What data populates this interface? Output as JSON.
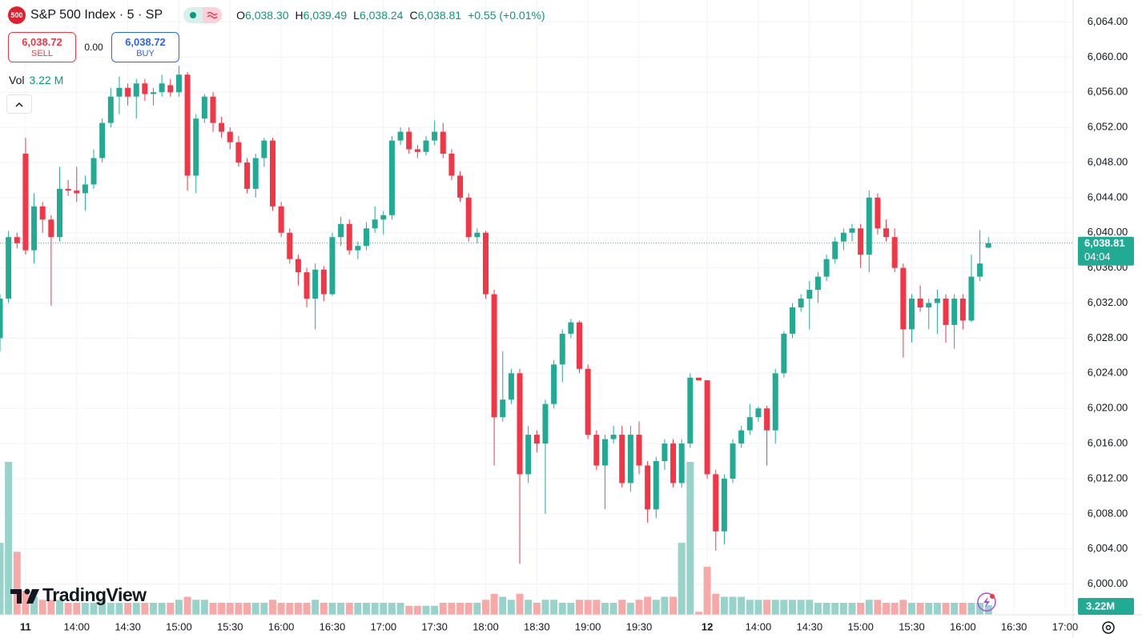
{
  "header": {
    "symbol_badge": "500",
    "symbol": "S&P 500 Index · 5 · SP",
    "open_label": "O",
    "open": "6,038.30",
    "high_label": "H",
    "high": "6,039.49",
    "low_label": "L",
    "low": "6,038.24",
    "close_label": "C",
    "close": "6,038.81",
    "change": "+0.55 (+0.01%)",
    "sell_price": "6,038.72",
    "sell_label": "SELL",
    "spread": "0.00",
    "buy_price": "6,038.72",
    "buy_label": "BUY",
    "volume_label": "Vol",
    "volume": "3.22 M"
  },
  "logo": "TradingView",
  "chart_data": {
    "type": "candlestick",
    "categories": [
      null,
      null,
      null,
      "11",
      null,
      null,
      null,
      null,
      null,
      "14:00",
      null,
      null,
      null,
      null,
      null,
      "14:30",
      null,
      null,
      null,
      null,
      null,
      "15:00",
      null,
      null,
      null,
      null,
      null,
      "15:30",
      null,
      null,
      null,
      null,
      null,
      "16:00",
      null,
      null,
      null,
      null,
      null,
      "16:30",
      null,
      null,
      null,
      null,
      null,
      "17:00",
      null,
      null,
      null,
      null,
      null,
      "17:30",
      null,
      null,
      null,
      null,
      null,
      "18:00",
      null,
      null,
      null,
      null,
      null,
      "18:30",
      null,
      null,
      null,
      null,
      null,
      "19:00",
      null,
      null,
      null,
      null,
      null,
      "19:30",
      null,
      null,
      null,
      null,
      null,
      null,
      null,
      "12",
      null,
      null,
      null,
      null,
      null,
      "14:00",
      null,
      null,
      null,
      null,
      null,
      "14:30",
      null,
      null,
      null,
      null,
      null,
      "15:00",
      null,
      null,
      null,
      null,
      null,
      "15:30",
      null,
      null,
      null,
      null,
      null,
      "16:00",
      null,
      null,
      null,
      null,
      null,
      "16:30",
      null,
      null,
      null,
      null,
      null,
      "17:00"
    ],
    "open": [
      6028,
      6032.5,
      6039.5,
      6049,
      6038,
      6043,
      6041.5,
      6039.5,
      6045,
      6044.8,
      6044.5,
      6045.5,
      6048.5,
      6052.5,
      6055.5,
      6056.5,
      6055.5,
      6057,
      6055.8,
      6056,
      6056.8,
      6056,
      6058,
      6046.5,
      6053,
      6055.5,
      6052.5,
      6051.5,
      6050.3,
      6048,
      6045,
      6048.5,
      6050.5,
      6043,
      6040,
      6037,
      6035.5,
      6032.5,
      6035.8,
      6033,
      6039.5,
      6041,
      6038,
      6038.5,
      6040.5,
      6041.5,
      6042,
      6050.5,
      6051.5,
      6049.5,
      6049.2,
      6050.5,
      6051.5,
      6049,
      6046.5,
      6044,
      6039.5,
      6040,
      6033,
      6019,
      6021,
      6024,
      6012.5,
      6017,
      6016,
      6020.5,
      6025,
      6028.5,
      6029.8,
      6024.5,
      6017,
      6013.5,
      6016.5,
      6017,
      6011.5,
      6017,
      6013.5,
      6008.5,
      6014,
      6016,
      6011.5,
      6016,
      6023.5,
      6023.2,
      6012.5,
      6006,
      6012,
      6016,
      6017.5,
      6019,
      6020,
      6017.5,
      6024,
      6028.5,
      6031.5,
      6032.5,
      6033.5,
      6035,
      6037,
      6039,
      6040,
      6040.5,
      6037.5,
      6044,
      6040.5,
      6039.5,
      6036,
      6029,
      6032.5,
      6031.5,
      6032,
      6032.5,
      6029.5,
      6032.5,
      6030,
      6035,
      6038.3,
      null,
      null,
      null,
      null,
      null,
      null,
      null,
      null,
      null
    ],
    "high": [
      6033,
      6040.2,
      6040,
      6050.8,
      6044.5,
      6043.5,
      6042,
      6047.5,
      6046,
      6047.5,
      6046.5,
      6049.5,
      6053,
      6056.5,
      6057.8,
      6057,
      6057.5,
      6057.5,
      6056.5,
      6058,
      6057.5,
      6059,
      6058.3,
      6053.5,
      6055.8,
      6056,
      6053.2,
      6052,
      6051,
      6048.5,
      6049,
      6050.8,
      6050.8,
      6043.5,
      6040.5,
      6037.5,
      6036,
      6036.5,
      6036.2,
      6040,
      6041.8,
      6041.5,
      6039,
      6041.2,
      6043,
      6042.5,
      6051,
      6052,
      6052,
      6050,
      6051,
      6052.8,
      6052.5,
      6049.5,
      6047,
      6044.5,
      6040.5,
      6040.2,
      6033.5,
      6026.5,
      6024.5,
      6024.5,
      6018,
      6017.5,
      6021,
      6025.5,
      6029,
      6030.2,
      6030,
      6025,
      6017.5,
      6017,
      6018,
      6018,
      6018,
      6018.5,
      6014,
      6014.5,
      6016.5,
      6016.5,
      6016.5,
      6024,
      6023.5,
      6023.2,
      6013,
      6012.5,
      6016.5,
      6018,
      6020.5,
      6020.2,
      6020.3,
      6024.5,
      6028.8,
      6032,
      6033,
      6034.5,
      6035.5,
      6037.5,
      6039.5,
      6040.5,
      6041,
      6041,
      6044.8,
      6044.5,
      6041.5,
      6040.5,
      6036.5,
      6033,
      6034,
      6032.5,
      6033.5,
      6033,
      6033,
      6033,
      6037.5,
      6040.3,
      6039.49,
      null,
      null,
      null,
      null,
      null,
      null,
      null,
      null,
      null
    ],
    "low": [
      6026.5,
      6032,
      6038.2,
      6037.5,
      6036.5,
      6040,
      6031.7,
      6039,
      6044.2,
      6043.5,
      6042.5,
      6045,
      6048,
      6052,
      6053.5,
      6054.5,
      6053,
      6055,
      6054.5,
      6055.5,
      6055.5,
      6055.5,
      6044.8,
      6044.5,
      6052.5,
      6051.5,
      6050.8,
      6049.5,
      6047.5,
      6044.5,
      6044,
      6047.5,
      6042.5,
      6039.5,
      6036.5,
      6034,
      6031.5,
      6029,
      6032.2,
      6032.8,
      6038.5,
      6037.5,
      6037,
      6038,
      6040,
      6039.8,
      6041.5,
      6050,
      6049,
      6048.5,
      6048.8,
      6050,
      6048.5,
      6046,
      6043.5,
      6039,
      6038.8,
      6032.5,
      6013.5,
      6018.5,
      6020.5,
      6002.3,
      6011.5,
      6015,
      6008,
      6020,
      6023,
      6028,
      6024,
      6016.5,
      6013,
      6008.5,
      6016,
      6011,
      6010.5,
      6012.5,
      6007,
      6007.5,
      6013,
      6011,
      6011,
      6015.5,
      6023.2,
      6012,
      6003.8,
      6004.5,
      6011.5,
      6015.5,
      6017,
      6018.5,
      6013.5,
      6016,
      6023.5,
      6028,
      6031,
      6029,
      6032,
      6034.5,
      6036.5,
      6038,
      6039,
      6036,
      6035.5,
      6039.8,
      6039,
      6035.5,
      6025.8,
      6027.5,
      6031,
      6029,
      6028.5,
      6027.5,
      6026.8,
      6029,
      6029.8,
      6034.5,
      6038.24,
      null,
      null,
      null,
      null,
      null,
      null,
      null,
      null,
      null
    ],
    "close": [
      6032.5,
      6039.5,
      6038.8,
      6038,
      6043,
      6041.5,
      6039.5,
      6045,
      6044.8,
      6044.5,
      6045.5,
      6048.5,
      6052.5,
      6055.5,
      6056.5,
      6055.5,
      6057,
      6055.8,
      6056,
      6057,
      6056,
      6058,
      6046.5,
      6053,
      6055.5,
      6052.5,
      6051.5,
      6050.3,
      6048,
      6045,
      6048.5,
      6050.5,
      6043,
      6040,
      6037,
      6035.5,
      6032.5,
      6035.8,
      6033,
      6039.5,
      6041,
      6038,
      6038.5,
      6040.5,
      6041.5,
      6042,
      6050.5,
      6051.5,
      6049.5,
      6049.2,
      6050.5,
      6051.5,
      6049,
      6046.5,
      6044,
      6039.5,
      6040,
      6033,
      6019,
      6021,
      6024,
      6012.5,
      6017,
      6016,
      6020.5,
      6025,
      6028.5,
      6029.8,
      6024.5,
      6017,
      6013.5,
      6016.5,
      6017,
      6011.5,
      6017,
      6013.5,
      6008.5,
      6014,
      6016,
      6011.5,
      6016,
      6023.5,
      6023.2,
      6012.5,
      6006,
      6012,
      6016,
      6017.5,
      6019,
      6020,
      6017.5,
      6024,
      6028.5,
      6031.5,
      6032.5,
      6033.5,
      6035,
      6037,
      6039,
      6040,
      6040.5,
      6037.5,
      6044,
      6040.5,
      6039.5,
      6036,
      6029,
      6032.5,
      6031.5,
      6032,
      6032.5,
      6029.5,
      6032.5,
      6030,
      6035,
      6036.5,
      6038.81,
      null,
      null,
      null,
      null,
      null,
      null,
      null,
      null,
      null
    ],
    "volume": [
      24,
      51,
      21,
      8,
      6,
      5,
      5,
      5,
      4,
      4,
      4,
      4,
      5,
      4,
      4,
      4,
      4,
      4,
      4,
      4,
      4,
      5,
      6,
      5,
      5,
      4,
      4,
      4,
      4,
      4,
      4,
      4,
      5,
      4,
      4,
      4,
      4,
      5,
      4,
      4,
      4,
      4,
      4,
      4,
      4,
      4,
      4,
      4,
      3,
      3,
      3,
      3,
      4,
      4,
      4,
      4,
      4,
      5,
      7,
      6,
      5,
      7,
      5,
      4,
      5,
      5,
      4,
      4,
      5,
      5,
      5,
      4,
      4,
      5,
      4,
      5,
      6,
      5,
      6,
      6,
      24,
      51,
      1,
      16,
      7,
      6,
      6,
      6,
      5,
      5,
      5,
      5,
      5,
      5,
      5,
      5,
      4,
      4,
      4,
      4,
      4,
      4,
      5,
      5,
      4,
      4,
      5,
      4,
      4,
      4,
      4,
      4,
      4,
      4,
      4,
      4,
      3.22,
      null,
      null,
      null,
      null,
      null,
      null,
      null,
      null,
      null
    ],
    "up_color": "#22ab94",
    "down_color": "#f23645",
    "volume_up_color": "#98d3cb",
    "volume_down_color": "#f7a9a7",
    "ylim": [
      5996.5,
      6066.5
    ],
    "yticks": [
      {
        "value": 6000,
        "label": "6,000.00"
      },
      {
        "value": 6004,
        "label": "6,004.00"
      },
      {
        "value": 6008,
        "label": "6,008.00"
      },
      {
        "value": 6012,
        "label": "6,012.00"
      },
      {
        "value": 6016,
        "label": "6,016.00"
      },
      {
        "value": 6020,
        "label": "6,020.00"
      },
      {
        "value": 6024,
        "label": "6,024.00"
      },
      {
        "value": 6028,
        "label": "6,028.00"
      },
      {
        "value": 6032,
        "label": "6,032.00"
      },
      {
        "value": 6036,
        "label": "6,036.00"
      },
      {
        "value": 6040,
        "label": "6,040.00"
      },
      {
        "value": 6044,
        "label": "6,044.00"
      },
      {
        "value": 6048,
        "label": "6,048.00"
      },
      {
        "value": 6052,
        "label": "6,052.00"
      },
      {
        "value": 6056,
        "label": "6,056.00"
      },
      {
        "value": 6060,
        "label": "6,060.00"
      },
      {
        "value": 6064,
        "label": "6,064.00"
      }
    ],
    "grid": true,
    "last_price_label": "6,038.81",
    "countdown": "04:04",
    "last_volume_label": "3.22M"
  }
}
